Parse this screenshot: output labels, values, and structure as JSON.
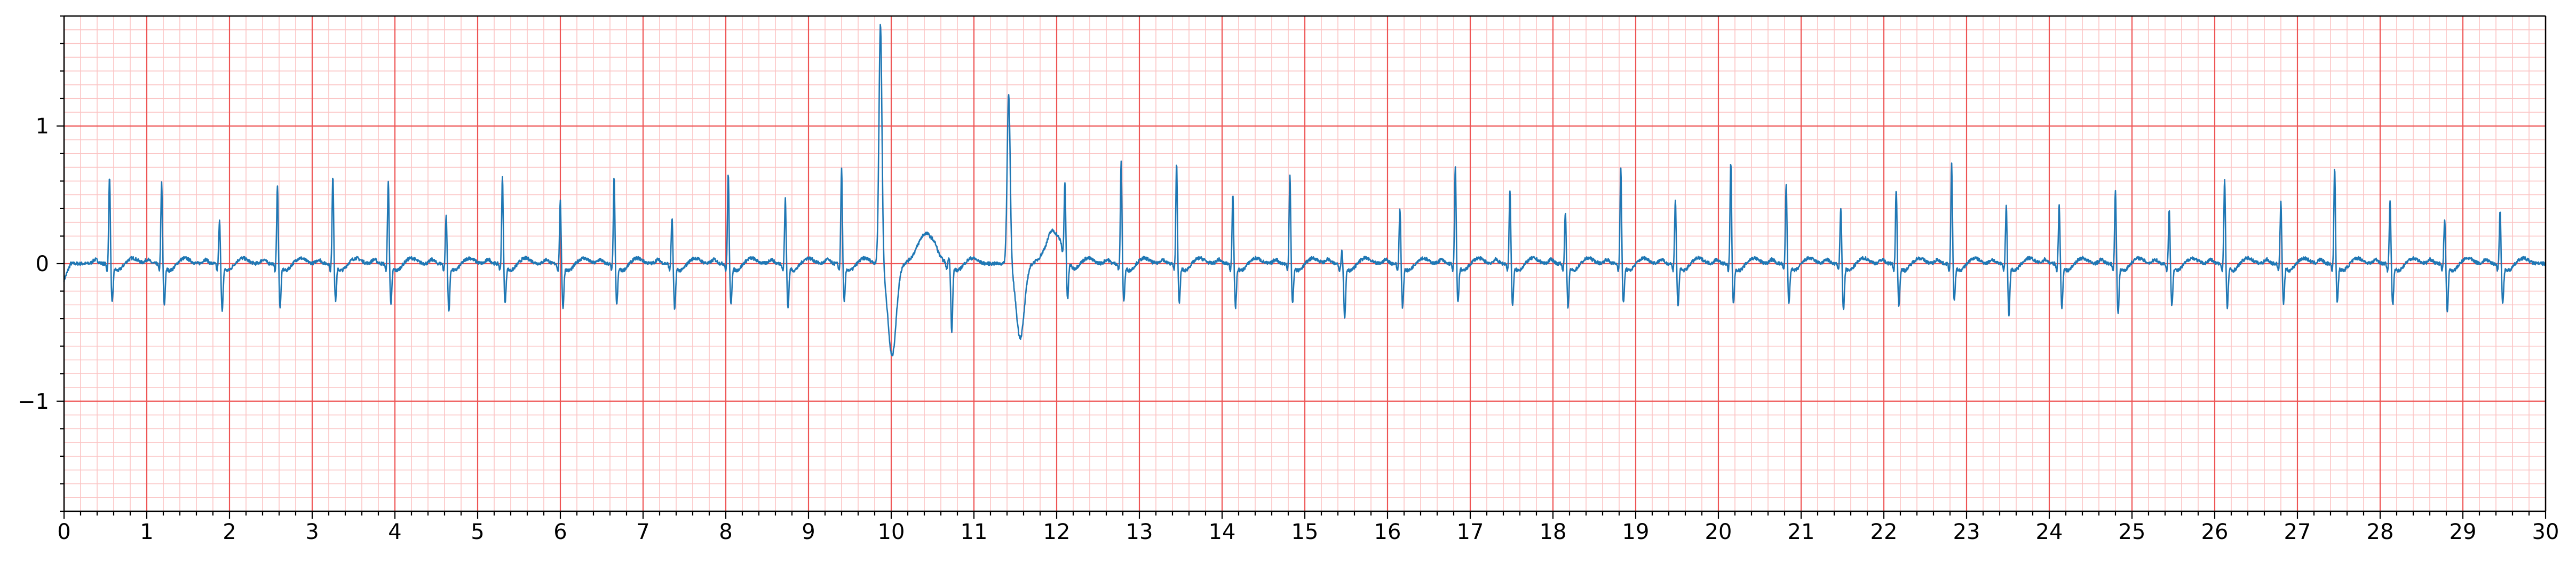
{
  "chart_data": {
    "type": "line",
    "title": "",
    "xlabel": "",
    "ylabel": "",
    "xlim": [
      0,
      30
    ],
    "ylim": [
      -1.8,
      1.8
    ],
    "x_ticks": [
      "0",
      "1",
      "2",
      "3",
      "4",
      "5",
      "6",
      "7",
      "8",
      "9",
      "10",
      "11",
      "12",
      "13",
      "14",
      "15",
      "16",
      "17",
      "18",
      "19",
      "20",
      "21",
      "22",
      "23",
      "24",
      "25",
      "26",
      "27",
      "28",
      "29",
      "30"
    ],
    "y_ticks": [
      {
        "value": 1,
        "label": "1"
      },
      {
        "value": 0,
        "label": "0"
      },
      {
        "value": -1,
        "label": "−1"
      }
    ],
    "grid": {
      "major_step_x": 1,
      "major_step_y": 1,
      "minor_step_x": 0.2,
      "minor_step_y": 0.1
    },
    "colors": {
      "line": "#1f77b4",
      "major_grid": "#ee5555",
      "minor_grid": "#fbc4c4",
      "axis": "#000000"
    },
    "series": [
      {
        "name": "",
        "beats": [
          {
            "t": 0.55,
            "r": 0.65,
            "s": -0.27,
            "kind": "normal"
          },
          {
            "t": 1.18,
            "r": 0.6,
            "s": -0.28,
            "kind": "normal"
          },
          {
            "t": 1.88,
            "r": 0.32,
            "s": -0.33,
            "kind": "normal"
          },
          {
            "t": 2.58,
            "r": 0.57,
            "s": -0.3,
            "kind": "normal"
          },
          {
            "t": 3.25,
            "r": 0.65,
            "s": -0.25,
            "kind": "normal"
          },
          {
            "t": 3.92,
            "r": 0.61,
            "s": -0.28,
            "kind": "normal"
          },
          {
            "t": 4.62,
            "r": 0.36,
            "s": -0.33,
            "kind": "normal"
          },
          {
            "t": 5.3,
            "r": 0.64,
            "s": -0.27,
            "kind": "normal"
          },
          {
            "t": 6.0,
            "r": 0.46,
            "s": -0.3,
            "kind": "normal"
          },
          {
            "t": 6.65,
            "r": 0.63,
            "s": -0.28,
            "kind": "normal"
          },
          {
            "t": 7.35,
            "r": 0.34,
            "s": -0.32,
            "kind": "normal"
          },
          {
            "t": 8.03,
            "r": 0.66,
            "s": -0.28,
            "kind": "normal"
          },
          {
            "t": 8.72,
            "r": 0.48,
            "s": -0.3,
            "kind": "normal"
          },
          {
            "t": 9.4,
            "r": 0.7,
            "s": -0.26,
            "kind": "normal"
          },
          {
            "t": 9.87,
            "r": 1.75,
            "s": -0.67,
            "kind": "ectopic"
          },
          {
            "t": 10.7,
            "r": 0.05,
            "s": -0.47,
            "kind": "normal"
          },
          {
            "t": 11.42,
            "r": 1.25,
            "s": -0.54,
            "kind": "ectopic"
          },
          {
            "t": 12.1,
            "r": 0.51,
            "s": -0.3,
            "kind": "normal"
          },
          {
            "t": 12.78,
            "r": 0.75,
            "s": -0.25,
            "kind": "normal"
          },
          {
            "t": 13.45,
            "r": 0.74,
            "s": -0.27,
            "kind": "normal"
          },
          {
            "t": 14.13,
            "r": 0.51,
            "s": -0.3,
            "kind": "normal"
          },
          {
            "t": 14.82,
            "r": 0.66,
            "s": -0.27,
            "kind": "normal"
          },
          {
            "t": 15.45,
            "r": 0.1,
            "s": -0.38,
            "kind": "normal"
          },
          {
            "t": 16.15,
            "r": 0.41,
            "s": -0.3,
            "kind": "normal"
          },
          {
            "t": 16.82,
            "r": 0.71,
            "s": -0.26,
            "kind": "normal"
          },
          {
            "t": 17.48,
            "r": 0.55,
            "s": -0.28,
            "kind": "normal"
          },
          {
            "t": 18.15,
            "r": 0.38,
            "s": -0.3,
            "kind": "normal"
          },
          {
            "t": 18.82,
            "r": 0.7,
            "s": -0.27,
            "kind": "normal"
          },
          {
            "t": 19.48,
            "r": 0.47,
            "s": -0.29,
            "kind": "normal"
          },
          {
            "t": 20.15,
            "r": 0.74,
            "s": -0.27,
            "kind": "normal"
          },
          {
            "t": 20.82,
            "r": 0.59,
            "s": -0.27,
            "kind": "normal"
          },
          {
            "t": 21.48,
            "r": 0.42,
            "s": -0.32,
            "kind": "normal"
          },
          {
            "t": 22.15,
            "r": 0.55,
            "s": -0.29,
            "kind": "normal"
          },
          {
            "t": 22.82,
            "r": 0.73,
            "s": -0.25,
            "kind": "normal"
          },
          {
            "t": 23.48,
            "r": 0.43,
            "s": -0.35,
            "kind": "normal"
          },
          {
            "t": 24.12,
            "r": 0.44,
            "s": -0.3,
            "kind": "normal"
          },
          {
            "t": 24.8,
            "r": 0.54,
            "s": -0.35,
            "kind": "normal"
          },
          {
            "t": 25.45,
            "r": 0.4,
            "s": -0.28,
            "kind": "normal"
          },
          {
            "t": 26.12,
            "r": 0.62,
            "s": -0.3,
            "kind": "normal"
          },
          {
            "t": 26.8,
            "r": 0.46,
            "s": -0.27,
            "kind": "normal"
          },
          {
            "t": 27.45,
            "r": 0.7,
            "s": -0.26,
            "kind": "normal"
          },
          {
            "t": 28.12,
            "r": 0.46,
            "s": -0.28,
            "kind": "normal"
          },
          {
            "t": 28.78,
            "r": 0.34,
            "s": -0.33,
            "kind": "normal"
          },
          {
            "t": 29.45,
            "r": 0.39,
            "s": -0.27,
            "kind": "normal"
          }
        ]
      }
    ]
  }
}
